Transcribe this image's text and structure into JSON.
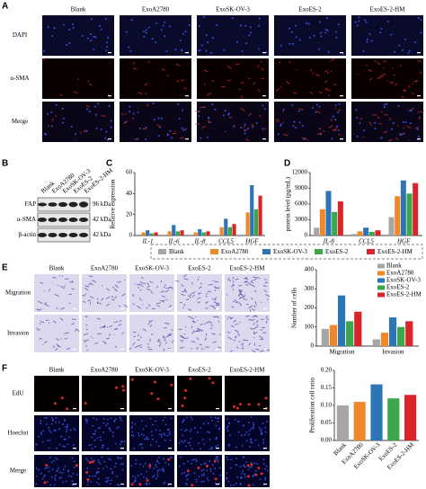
{
  "panel_a": {
    "label": "A",
    "columns": [
      "Blank",
      "ExoA2780",
      "ExoSK-OV-3",
      "ExoES-2",
      "ExoES-2-HM"
    ],
    "rows": [
      "DAPI",
      "α-SMA",
      "Merge"
    ]
  },
  "panel_b": {
    "label": "B",
    "columns": [
      "Blank",
      "ExoA2780",
      "ExoSK-OV-3",
      "ExoES-2",
      "ExoES-2-HM"
    ],
    "bands": [
      {
        "name": "FAP",
        "size": "96 kDa"
      },
      {
        "name": "α-SMA",
        "size": "42 kDa"
      },
      {
        "name": "β-actin",
        "size": "42 kDa"
      }
    ]
  },
  "panel_e": {
    "label": "E",
    "columns": [
      "Blank",
      "ExoA2780",
      "ExoSK-OV-3",
      "ExoES-2",
      "ExoES-2-HM"
    ],
    "rows": [
      "Migration",
      "Invasion"
    ]
  },
  "panel_f": {
    "label": "F",
    "columns": [
      "Blank",
      "ExoA2780",
      "ExoSK-OV-3",
      "ExoES-2",
      "ExoES-2-HM"
    ],
    "rows": [
      "EdU",
      "Hoechst",
      "Merge"
    ]
  },
  "chart_data": [
    {
      "type": "bar",
      "panel_label": "C",
      "y_label": "Relative expression",
      "categories": [
        "IL-1",
        "IL-6",
        "IL-8",
        "CCL5",
        "HGF"
      ],
      "ylim": [
        0,
        60
      ],
      "yticks": [
        0,
        20,
        40,
        60
      ],
      "series": [
        {
          "name": "Blank",
          "color": "#a6a6a6",
          "values": [
            1,
            1,
            1,
            1,
            1
          ]
        },
        {
          "name": "ExoA2780",
          "color": "#f0882a",
          "values": [
            3,
            4,
            3,
            8,
            22
          ]
        },
        {
          "name": "ExoSK-OV-3",
          "color": "#2e75b6",
          "values": [
            5,
            10,
            6,
            16,
            48
          ]
        },
        {
          "name": "ExoES-2",
          "color": "#3aa84a",
          "values": [
            2,
            4,
            3,
            8,
            25
          ]
        },
        {
          "name": "ExoES-2-HM",
          "color": "#d9252a",
          "values": [
            3,
            5,
            4,
            11,
            38
          ]
        }
      ]
    },
    {
      "type": "bar",
      "panel_label": "D",
      "y_label": "protein level (pg/mL)",
      "categories": [
        "IL-8",
        "CCL5",
        "HGF"
      ],
      "ylim": [
        0,
        12000
      ],
      "yticks": [
        0,
        3000,
        6000,
        9000,
        12000
      ],
      "series": [
        {
          "color": "#a6a6a6",
          "values": [
            1500,
            300,
            3500
          ]
        },
        {
          "color": "#f0882a",
          "values": [
            5000,
            800,
            7500
          ]
        },
        {
          "color": "#2e75b6",
          "values": [
            8500,
            1500,
            10500
          ]
        },
        {
          "color": "#3aa84a",
          "values": [
            4500,
            700,
            8000
          ]
        },
        {
          "color": "#d9252a",
          "values": [
            6500,
            1000,
            10000
          ]
        }
      ]
    },
    {
      "type": "bar",
      "y_label": "Number of cells",
      "categories": [
        "Migration",
        "Invasion"
      ],
      "ylim": [
        0,
        400
      ],
      "yticks": [
        0,
        100,
        200,
        300,
        400
      ],
      "series": [
        {
          "name": "Blank",
          "color": "#a6a6a6",
          "values": [
            90,
            35
          ]
        },
        {
          "name": "ExoA2780",
          "color": "#f0882a",
          "values": [
            110,
            70
          ]
        },
        {
          "name": "ExoSK-OV-3",
          "color": "#2e75b6",
          "values": [
            265,
            150
          ]
        },
        {
          "name": "ExoES-2",
          "color": "#3aa84a",
          "values": [
            130,
            100
          ]
        },
        {
          "name": "ExoES-2-HM",
          "color": "#d9252a",
          "values": [
            180,
            130
          ]
        }
      ]
    },
    {
      "type": "column",
      "y_label": "Proliferation cell ratio",
      "categories": [
        "Blank",
        "ExoA2780",
        "ExoSK-OV-3",
        "ExoES-2",
        "ExoES-2-HM"
      ],
      "values": [
        0.1,
        0.11,
        0.16,
        0.12,
        0.13
      ],
      "colors": [
        "#a6a6a6",
        "#f0882a",
        "#2e75b6",
        "#3aa84a",
        "#d9252a"
      ],
      "ylim": [
        0,
        0.2
      ],
      "yticks": [
        {
          "value": 0,
          "label": "0.00"
        },
        {
          "value": 0.05,
          "label": "0.05"
        },
        {
          "value": 0.1,
          "label": "0.10"
        },
        {
          "value": 0.15,
          "label": "0.15"
        },
        {
          "value": 0.2,
          "label": "0.20"
        }
      ]
    }
  ]
}
